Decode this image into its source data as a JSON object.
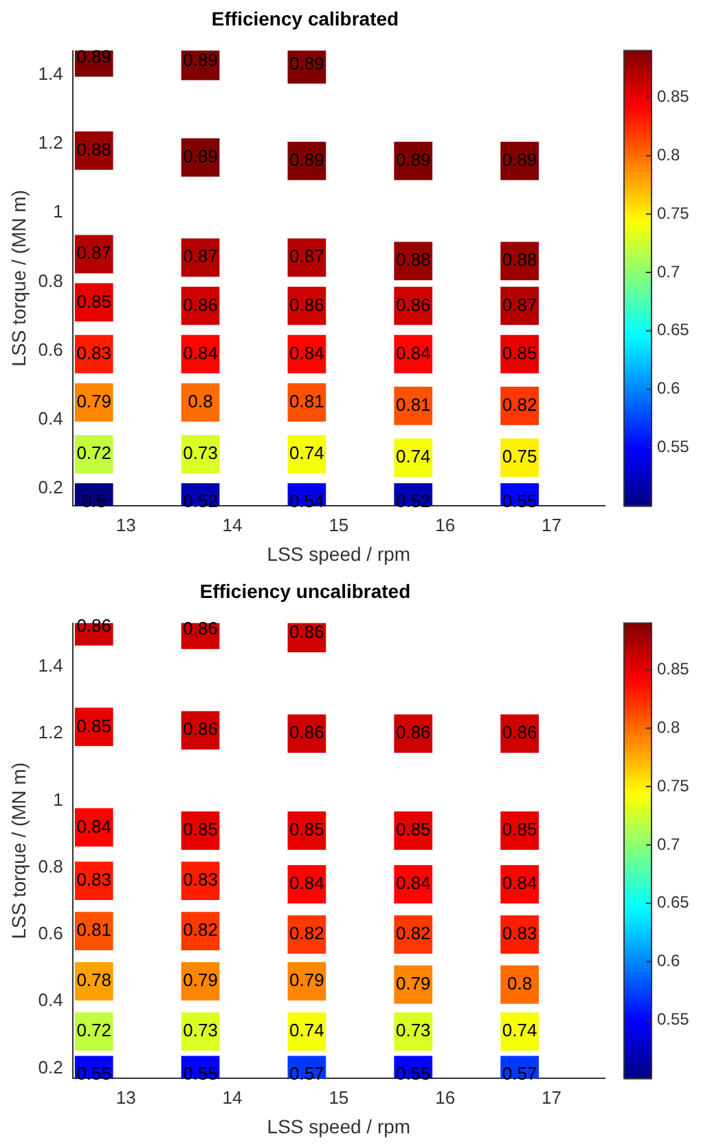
{
  "chart_data": [
    {
      "type": "scatter",
      "title": "Efficiency calibrated",
      "xlabel": "LSS speed / rpm",
      "ylabel": "LSS torque / (MN m)",
      "marker": "square",
      "grid": false,
      "legend": false,
      "x": [
        12.7,
        13.7,
        14.7,
        12.7,
        13.7,
        14.7,
        15.7,
        16.7,
        12.7,
        13.7,
        14.7,
        15.7,
        16.7,
        12.7,
        13.7,
        14.7,
        15.7,
        16.7,
        12.7,
        13.7,
        14.7,
        15.7,
        16.7,
        12.7,
        13.7,
        14.7,
        15.7,
        16.7,
        12.7,
        13.7,
        14.7,
        15.7,
        16.7,
        12.7,
        13.7,
        14.7,
        15.7,
        16.7
      ],
      "values": [
        1.45,
        1.44,
        1.43,
        1.18,
        1.16,
        1.15,
        1.15,
        1.15,
        0.88,
        0.87,
        0.87,
        0.86,
        0.86,
        0.74,
        0.73,
        0.73,
        0.73,
        0.73,
        0.59,
        0.59,
        0.59,
        0.59,
        0.59,
        0.45,
        0.45,
        0.45,
        0.44,
        0.44,
        0.3,
        0.3,
        0.3,
        0.29,
        0.29,
        0.16,
        0.16,
        0.16,
        0.16,
        0.16
      ],
      "cvalues": [
        0.89,
        0.89,
        0.89,
        0.88,
        0.89,
        0.89,
        0.89,
        0.89,
        0.87,
        0.87,
        0.87,
        0.88,
        0.88,
        0.85,
        0.86,
        0.86,
        0.86,
        0.87,
        0.83,
        0.84,
        0.84,
        0.84,
        0.85,
        0.79,
        0.8,
        0.81,
        0.81,
        0.82,
        0.72,
        0.73,
        0.74,
        0.74,
        0.75,
        0.5,
        0.52,
        0.54,
        0.52,
        0.55
      ],
      "annotations": [
        {
          "text": "0.89",
          "x": 12.7,
          "y": 1.45
        },
        {
          "text": "0.89",
          "x": 13.7,
          "y": 1.44
        },
        {
          "text": "0.89",
          "x": 14.7,
          "y": 1.43
        },
        {
          "text": "0.88",
          "x": 12.7,
          "y": 1.18
        },
        {
          "text": "0.89",
          "x": 13.7,
          "y": 1.16
        },
        {
          "text": "0.89",
          "x": 14.7,
          "y": 1.15
        },
        {
          "text": "0.89",
          "x": 15.7,
          "y": 1.15
        },
        {
          "text": "0.89",
          "x": 16.7,
          "y": 1.15
        },
        {
          "text": "0.87",
          "x": 12.7,
          "y": 0.88
        },
        {
          "text": "0.87",
          "x": 13.7,
          "y": 0.87
        },
        {
          "text": "0.87",
          "x": 14.7,
          "y": 0.87
        },
        {
          "text": "0.88",
          "x": 15.7,
          "y": 0.86
        },
        {
          "text": "0.88",
          "x": 16.7,
          "y": 0.86
        },
        {
          "text": "0.85",
          "x": 12.7,
          "y": 0.74
        },
        {
          "text": "0.86",
          "x": 13.7,
          "y": 0.73
        },
        {
          "text": "0.86",
          "x": 14.7,
          "y": 0.73
        },
        {
          "text": "0.86",
          "x": 15.7,
          "y": 0.73
        },
        {
          "text": "0.87",
          "x": 16.7,
          "y": 0.73
        },
        {
          "text": "0.83",
          "x": 12.7,
          "y": 0.59
        },
        {
          "text": "0.84",
          "x": 13.7,
          "y": 0.59
        },
        {
          "text": "0.84",
          "x": 14.7,
          "y": 0.59
        },
        {
          "text": "0.84",
          "x": 15.7,
          "y": 0.59
        },
        {
          "text": "0.85",
          "x": 16.7,
          "y": 0.59
        },
        {
          "text": "0.79",
          "x": 12.7,
          "y": 0.45
        },
        {
          "text": "0.8",
          "x": 13.7,
          "y": 0.45
        },
        {
          "text": "0.81",
          "x": 14.7,
          "y": 0.45
        },
        {
          "text": "0.81",
          "x": 15.7,
          "y": 0.44
        },
        {
          "text": "0.82",
          "x": 16.7,
          "y": 0.44
        },
        {
          "text": "0.72",
          "x": 12.7,
          "y": 0.3
        },
        {
          "text": "0.73",
          "x": 13.7,
          "y": 0.3
        },
        {
          "text": "0.74",
          "x": 14.7,
          "y": 0.3
        },
        {
          "text": "0.74",
          "x": 15.7,
          "y": 0.29
        },
        {
          "text": "0.75",
          "x": 16.7,
          "y": 0.29
        },
        {
          "text": "0.5",
          "x": 12.7,
          "y": 0.16
        },
        {
          "text": "0.52",
          "x": 13.7,
          "y": 0.16
        },
        {
          "text": "0.54",
          "x": 14.7,
          "y": 0.16
        },
        {
          "text": "0.52",
          "x": 15.7,
          "y": 0.16
        },
        {
          "text": "0.55",
          "x": 16.7,
          "y": 0.16
        }
      ],
      "xlim": [
        12.5,
        17.5
      ],
      "xticks": [
        13,
        14,
        15,
        16,
        17
      ],
      "ylim": [
        0.15,
        1.47
      ],
      "yticks": [
        0.2,
        0.4,
        0.6,
        0.8,
        1,
        1.2,
        1.4
      ],
      "clim": [
        0.5,
        0.89
      ],
      "cticks": [
        0.55,
        0.6,
        0.65,
        0.7,
        0.75,
        0.8,
        0.85
      ]
    },
    {
      "type": "scatter",
      "title": "Efficiency uncalibrated",
      "xlabel": "LSS speed / rpm",
      "ylabel": "LSS torque / (MN m)",
      "marker": "square",
      "grid": false,
      "legend": false,
      "x": [
        12.7,
        13.7,
        14.7,
        12.7,
        13.7,
        14.7,
        15.7,
        16.7,
        12.7,
        13.7,
        14.7,
        15.7,
        16.7,
        12.7,
        13.7,
        14.7,
        15.7,
        16.7,
        12.7,
        13.7,
        14.7,
        15.7,
        16.7,
        12.7,
        13.7,
        14.7,
        15.7,
        16.7,
        12.7,
        13.7,
        14.7,
        15.7,
        16.7,
        12.7,
        13.7,
        14.7,
        15.7,
        16.7
      ],
      "values": [
        1.52,
        1.51,
        1.5,
        1.22,
        1.21,
        1.2,
        1.2,
        1.2,
        0.92,
        0.91,
        0.91,
        0.91,
        0.91,
        0.76,
        0.76,
        0.75,
        0.75,
        0.75,
        0.61,
        0.61,
        0.6,
        0.6,
        0.6,
        0.46,
        0.46,
        0.46,
        0.45,
        0.45,
        0.31,
        0.31,
        0.31,
        0.31,
        0.31,
        0.18,
        0.18,
        0.18,
        0.18,
        0.18
      ],
      "cvalues": [
        0.86,
        0.86,
        0.86,
        0.85,
        0.86,
        0.86,
        0.86,
        0.86,
        0.84,
        0.85,
        0.85,
        0.85,
        0.85,
        0.83,
        0.83,
        0.84,
        0.84,
        0.84,
        0.81,
        0.82,
        0.82,
        0.82,
        0.83,
        0.78,
        0.79,
        0.79,
        0.79,
        0.8,
        0.72,
        0.73,
        0.74,
        0.73,
        0.74,
        0.55,
        0.55,
        0.57,
        0.55,
        0.57
      ],
      "annotations": [
        {
          "text": "0.86",
          "x": 12.7,
          "y": 1.52
        },
        {
          "text": "0.86",
          "x": 13.7,
          "y": 1.51
        },
        {
          "text": "0.86",
          "x": 14.7,
          "y": 1.5
        },
        {
          "text": "0.85",
          "x": 12.7,
          "y": 1.22
        },
        {
          "text": "0.86",
          "x": 13.7,
          "y": 1.21
        },
        {
          "text": "0.86",
          "x": 14.7,
          "y": 1.2
        },
        {
          "text": "0.86",
          "x": 15.7,
          "y": 1.2
        },
        {
          "text": "0.86",
          "x": 16.7,
          "y": 1.2
        },
        {
          "text": "0.84",
          "x": 12.7,
          "y": 0.92
        },
        {
          "text": "0.85",
          "x": 13.7,
          "y": 0.91
        },
        {
          "text": "0.85",
          "x": 14.7,
          "y": 0.91
        },
        {
          "text": "0.85",
          "x": 15.7,
          "y": 0.91
        },
        {
          "text": "0.85",
          "x": 16.7,
          "y": 0.91
        },
        {
          "text": "0.83",
          "x": 12.7,
          "y": 0.76
        },
        {
          "text": "0.83",
          "x": 13.7,
          "y": 0.76
        },
        {
          "text": "0.84",
          "x": 14.7,
          "y": 0.75
        },
        {
          "text": "0.84",
          "x": 15.7,
          "y": 0.75
        },
        {
          "text": "0.84",
          "x": 16.7,
          "y": 0.75
        },
        {
          "text": "0.81",
          "x": 12.7,
          "y": 0.61
        },
        {
          "text": "0.82",
          "x": 13.7,
          "y": 0.61
        },
        {
          "text": "0.82",
          "x": 14.7,
          "y": 0.6
        },
        {
          "text": "0.82",
          "x": 15.7,
          "y": 0.6
        },
        {
          "text": "0.83",
          "x": 16.7,
          "y": 0.6
        },
        {
          "text": "0.78",
          "x": 12.7,
          "y": 0.46
        },
        {
          "text": "0.79",
          "x": 13.7,
          "y": 0.46
        },
        {
          "text": "0.79",
          "x": 14.7,
          "y": 0.46
        },
        {
          "text": "0.79",
          "x": 15.7,
          "y": 0.45
        },
        {
          "text": "0.8",
          "x": 16.7,
          "y": 0.45
        },
        {
          "text": "0.72",
          "x": 12.7,
          "y": 0.31
        },
        {
          "text": "0.73",
          "x": 13.7,
          "y": 0.31
        },
        {
          "text": "0.74",
          "x": 14.7,
          "y": 0.31
        },
        {
          "text": "0.73",
          "x": 15.7,
          "y": 0.31
        },
        {
          "text": "0.74",
          "x": 16.7,
          "y": 0.31
        },
        {
          "text": "0.55",
          "x": 12.7,
          "y": 0.18
        },
        {
          "text": "0.55",
          "x": 13.7,
          "y": 0.18
        },
        {
          "text": "0.57",
          "x": 14.7,
          "y": 0.18
        },
        {
          "text": "0.55",
          "x": 15.7,
          "y": 0.18
        },
        {
          "text": "0.57",
          "x": 16.7,
          "y": 0.18
        }
      ],
      "xlim": [
        12.5,
        17.5
      ],
      "xticks": [
        13,
        14,
        15,
        16,
        17
      ],
      "ylim": [
        0.17,
        1.53
      ],
      "yticks": [
        0.2,
        0.4,
        0.6,
        0.8,
        1,
        1.2,
        1.4
      ],
      "clim": [
        0.5,
        0.89
      ],
      "cticks": [
        0.55,
        0.6,
        0.65,
        0.7,
        0.75,
        0.8,
        0.85
      ]
    }
  ]
}
